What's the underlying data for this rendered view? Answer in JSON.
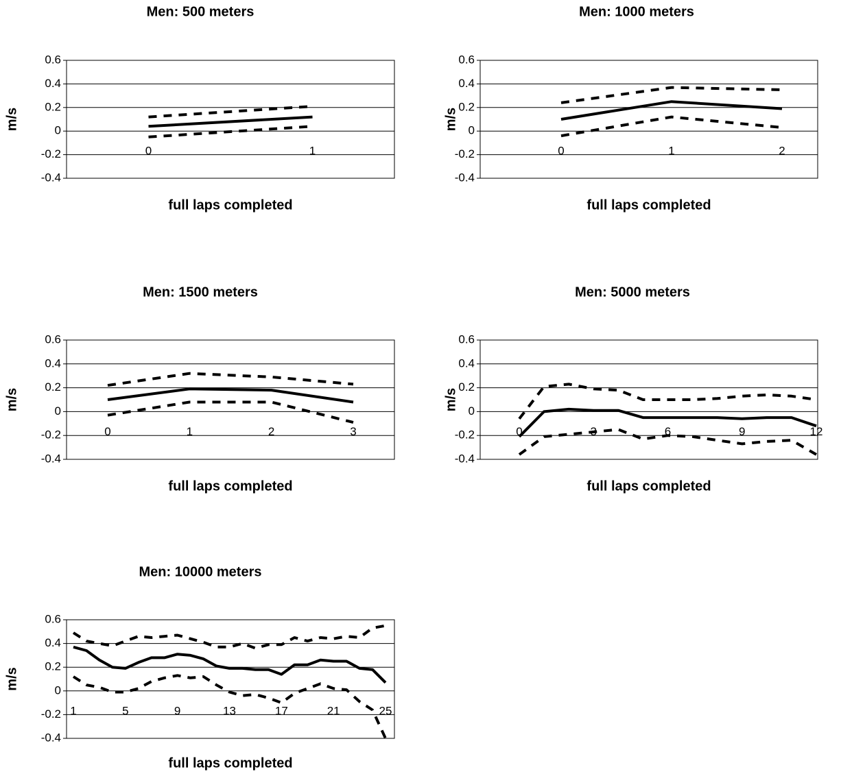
{
  "chart_data": [
    {
      "type": "line",
      "title": "Men: 500 meters",
      "x_label": "full laps completed",
      "y_label": "m/s",
      "categories": [
        "0",
        "1"
      ],
      "ylim": [
        -0.4,
        0.6
      ],
      "yticks": [
        0.6,
        0.4,
        0.2,
        0,
        -0.2,
        -0.4
      ],
      "grid": true,
      "series": [
        {
          "color": "#000000",
          "dash": "solid",
          "values": [
            0.04,
            0.12
          ]
        },
        {
          "color": "#000000",
          "dash": "dashed",
          "values": [
            0.12,
            0.21
          ]
        },
        {
          "color": "#000000",
          "dash": "dashed",
          "values": [
            -0.05,
            0.04
          ]
        }
      ]
    },
    {
      "type": "line",
      "title": "Men: 1000 meters",
      "x_label": "full laps completed",
      "y_label": "m/s",
      "categories": [
        "0",
        "1",
        "2"
      ],
      "ylim": [
        -0.4,
        0.6
      ],
      "yticks": [
        0.6,
        0.4,
        0.2,
        0,
        -0.2,
        -0.4
      ],
      "grid": true,
      "series": [
        {
          "color": "#000000",
          "dash": "solid",
          "values": [
            0.1,
            0.25,
            0.19
          ]
        },
        {
          "color": "#000000",
          "dash": "dashed",
          "values": [
            0.24,
            0.37,
            0.35
          ]
        },
        {
          "color": "#000000",
          "dash": "dashed",
          "values": [
            -0.04,
            0.12,
            0.03
          ]
        }
      ]
    },
    {
      "type": "line",
      "title": "Men: 1500 meters",
      "x_label": "full laps completed",
      "y_label": "m/s",
      "categories": [
        "0",
        "1",
        "2",
        "3"
      ],
      "ylim": [
        -0.4,
        0.6
      ],
      "yticks": [
        0.6,
        0.4,
        0.2,
        0,
        -0.2,
        -0.4
      ],
      "grid": true,
      "series": [
        {
          "color": "#000000",
          "dash": "solid",
          "values": [
            0.1,
            0.19,
            0.18,
            0.08
          ]
        },
        {
          "color": "#000000",
          "dash": "dashed",
          "values": [
            0.22,
            0.32,
            0.29,
            0.23
          ]
        },
        {
          "color": "#000000",
          "dash": "dashed",
          "values": [
            -0.03,
            0.08,
            0.08,
            -0.09
          ]
        }
      ]
    },
    {
      "type": "line",
      "title": "Men: 5000 meters",
      "x_label": "full laps completed",
      "y_label": "m/s",
      "categories": [
        "0",
        null,
        null,
        "3",
        null,
        null,
        "6",
        null,
        null,
        "9",
        null,
        null,
        "12"
      ],
      "ylim": [
        -0.4,
        0.6
      ],
      "yticks": [
        0.6,
        0.4,
        0.2,
        0,
        -0.2,
        -0.4
      ],
      "grid": true,
      "series": [
        {
          "color": "#000000",
          "dash": "solid",
          "values": [
            -0.21,
            0.0,
            0.02,
            0.01,
            0.01,
            -0.05,
            -0.05,
            -0.05,
            -0.05,
            -0.06,
            -0.05,
            -0.05,
            -0.12
          ]
        },
        {
          "color": "#000000",
          "dash": "dashed",
          "values": [
            -0.06,
            0.21,
            0.23,
            0.19,
            0.18,
            0.1,
            0.1,
            0.1,
            0.11,
            0.13,
            0.14,
            0.13,
            0.1
          ]
        },
        {
          "color": "#000000",
          "dash": "dashed",
          "values": [
            -0.36,
            -0.21,
            -0.19,
            -0.17,
            -0.15,
            -0.23,
            -0.2,
            -0.21,
            -0.24,
            -0.27,
            -0.25,
            -0.24,
            -0.36
          ]
        }
      ]
    },
    {
      "type": "line",
      "title": "Men: 10000 meters",
      "x_label": "full laps completed",
      "y_label": "m/s",
      "categories": [
        "1",
        null,
        null,
        null,
        "5",
        null,
        null,
        null,
        "9",
        null,
        null,
        null,
        "13",
        null,
        null,
        null,
        "17",
        null,
        null,
        null,
        "21",
        null,
        null,
        null,
        "25"
      ],
      "ylim": [
        -0.4,
        0.6
      ],
      "yticks": [
        0.6,
        0.4,
        0.2,
        0,
        -0.2,
        -0.4
      ],
      "grid": true,
      "series": [
        {
          "color": "#000000",
          "dash": "solid",
          "values": [
            0.37,
            0.34,
            0.26,
            0.2,
            0.19,
            0.24,
            0.28,
            0.28,
            0.31,
            0.3,
            0.27,
            0.21,
            0.19,
            0.19,
            0.18,
            0.18,
            0.14,
            0.22,
            0.22,
            0.26,
            0.25,
            0.25,
            0.19,
            0.18,
            0.07
          ]
        },
        {
          "color": "#000000",
          "dash": "dashed",
          "values": [
            0.49,
            0.42,
            0.4,
            0.38,
            0.42,
            0.46,
            0.45,
            0.46,
            0.47,
            0.44,
            0.41,
            0.37,
            0.37,
            0.4,
            0.36,
            0.39,
            0.39,
            0.45,
            0.42,
            0.45,
            0.44,
            0.46,
            0.45,
            0.53,
            0.55
          ]
        },
        {
          "color": "#000000",
          "dash": "dashed",
          "values": [
            0.12,
            0.05,
            0.03,
            -0.01,
            -0.01,
            0.02,
            0.08,
            0.11,
            0.13,
            0.11,
            0.12,
            0.05,
            -0.01,
            -0.04,
            -0.03,
            -0.06,
            -0.1,
            -0.02,
            0.02,
            0.06,
            0.02,
            0.01,
            -0.09,
            -0.16,
            -0.4
          ]
        }
      ]
    }
  ]
}
